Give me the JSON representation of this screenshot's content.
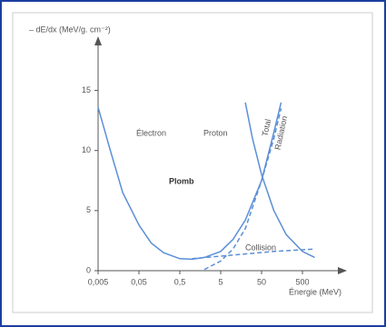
{
  "chart_data": {
    "type": "line",
    "y_label": "– dE/dx (MeV/g. cm⁻²)",
    "x_label": "Énergie (MeV)",
    "annotations": [
      "Plomb",
      "Total"
    ],
    "log_x": true,
    "xlim": [
      0.005,
      5000
    ],
    "ylim": [
      0,
      19.5
    ],
    "xticks": [
      {
        "value": 0.005,
        "label": "0,005"
      },
      {
        "value": 0.05,
        "label": "0,05"
      },
      {
        "value": 0.5,
        "label": "0,5"
      },
      5,
      50,
      500
    ],
    "yticks": [
      0,
      5,
      10,
      15
    ],
    "series": [
      {
        "name": "Électron",
        "color": "#5b8fd6",
        "style": "solid",
        "x": [
          0.005,
          0.01,
          0.02,
          0.05,
          0.1,
          0.2,
          0.5,
          1,
          2,
          5,
          10,
          20,
          50,
          100,
          150
        ],
        "values": [
          13.6,
          10,
          6.5,
          3.8,
          2.3,
          1.5,
          1.0,
          0.95,
          1.1,
          1.6,
          2.6,
          4.2,
          7.5,
          11.5,
          14
        ]
      },
      {
        "name": "Proton",
        "color": "#5b8fd6",
        "style": "solid",
        "x": [
          20,
          30,
          50,
          100,
          200,
          500,
          1000
        ],
        "values": [
          14,
          11,
          8,
          5,
          3,
          1.6,
          1.1
        ]
      },
      {
        "name": "Radiation",
        "color": "#5b8fd6",
        "style": "dashed",
        "x": [
          2,
          5,
          10,
          20,
          50,
          100,
          150
        ],
        "values": [
          0.1,
          0.8,
          1.8,
          3.5,
          7.5,
          11,
          13.5
        ]
      },
      {
        "name": "Collision",
        "color": "#5b8fd6",
        "style": "dashed",
        "x": [
          1,
          10,
          100,
          1000
        ],
        "values": [
          1.0,
          1.3,
          1.6,
          1.8
        ]
      }
    ]
  }
}
